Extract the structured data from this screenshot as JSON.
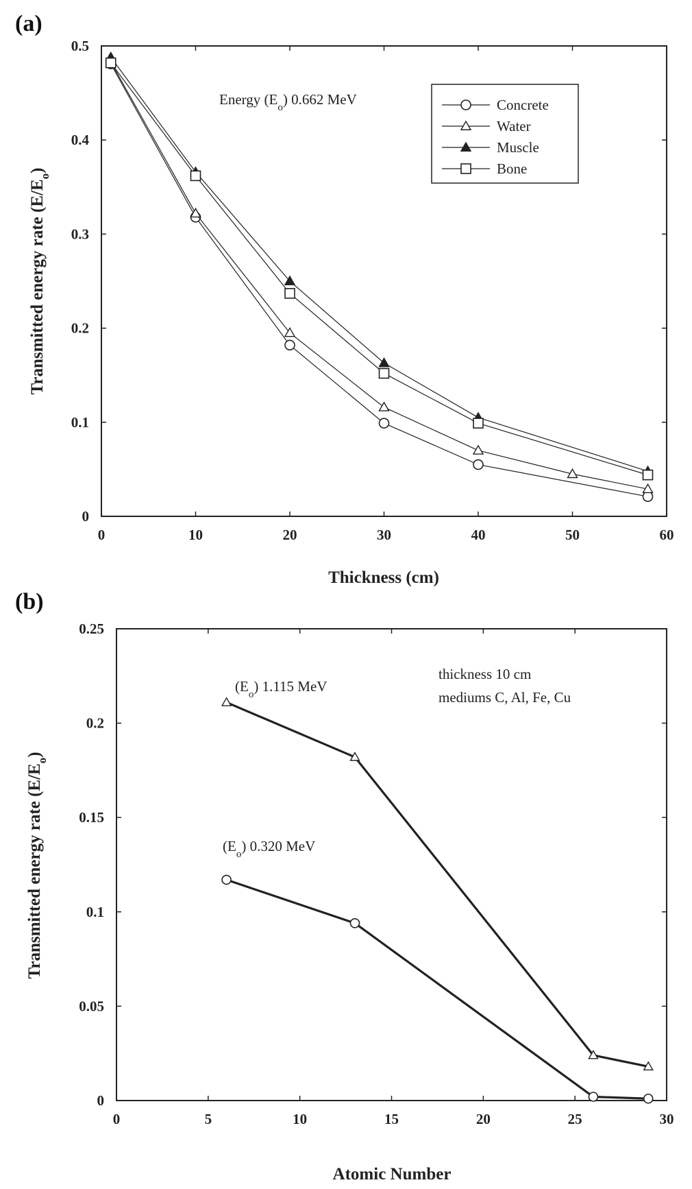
{
  "chart_data": [
    {
      "panel_label": "(a)",
      "type": "line",
      "xlabel": "Thickness (cm)",
      "ylabel_main": "Transmitted energy rate (E/E",
      "ylabel_sub": "o",
      "ylabel_end": ")",
      "xlim": [
        0,
        60
      ],
      "ylim": [
        0,
        0.5
      ],
      "xticks": [
        0,
        10,
        20,
        30,
        40,
        50,
        60
      ],
      "yticks": [
        0,
        0.1,
        0.2,
        0.3,
        0.4,
        0.5
      ],
      "xtick_labels": [
        "0",
        "10",
        "20",
        "30",
        "40",
        "50",
        "60"
      ],
      "ytick_labels": [
        "0",
        "0.1",
        "0.2",
        "0.3",
        "0.4",
        "0.5"
      ],
      "annotation": {
        "pre": "Energy (E",
        "sub": "o",
        "post": ") 0.662 MeV"
      },
      "legend_position": "top-right",
      "series": [
        {
          "name": "Concrete",
          "marker": "open-circle",
          "x": [
            1,
            10,
            20,
            30,
            40,
            58
          ],
          "y": [
            0.481,
            0.318,
            0.182,
            0.099,
            0.055,
            0.021
          ]
        },
        {
          "name": "Water",
          "marker": "open-triangle",
          "x": [
            1,
            10,
            20,
            30,
            40,
            50,
            58
          ],
          "y": [
            0.483,
            0.322,
            0.195,
            0.116,
            0.07,
            0.045,
            0.029
          ]
        },
        {
          "name": "Muscle",
          "marker": "filled-triangle",
          "x": [
            1,
            10,
            20,
            30,
            40,
            58
          ],
          "y": [
            0.488,
            0.366,
            0.25,
            0.163,
            0.105,
            0.048
          ]
        },
        {
          "name": "Bone",
          "marker": "open-square",
          "x": [
            1,
            10,
            20,
            30,
            40,
            58
          ],
          "y": [
            0.482,
            0.362,
            0.237,
            0.152,
            0.099,
            0.044
          ]
        }
      ]
    },
    {
      "panel_label": "(b)",
      "type": "line",
      "xlabel": "Atomic Number",
      "ylabel_main": "Transmitted energy rate (E/E",
      "ylabel_sub": "o",
      "ylabel_end": ")",
      "xlim": [
        0,
        30
      ],
      "ylim": [
        0,
        0.25
      ],
      "xticks": [
        0,
        5,
        10,
        15,
        20,
        25,
        30
      ],
      "yticks": [
        0,
        0.05,
        0.1,
        0.15,
        0.2,
        0.25
      ],
      "xtick_labels": [
        "0",
        "5",
        "10",
        "15",
        "20",
        "25",
        "30"
      ],
      "ytick_labels": [
        "0",
        "0.05",
        "0.1",
        "0.15",
        "0.2",
        "0.25"
      ],
      "annotation_lines": [
        "thickness 10 cm",
        "mediums C, Al, Fe, Cu"
      ],
      "series": [
        {
          "name": "1.115 MeV",
          "marker": "open-triangle",
          "label": {
            "pre": "(E",
            "sub": "o",
            "post": ") 1.115 MeV"
          },
          "x": [
            6,
            13,
            26,
            29
          ],
          "y": [
            0.211,
            0.182,
            0.024,
            0.018
          ]
        },
        {
          "name": "0.320 MeV",
          "marker": "open-circle",
          "label": {
            "pre": "(E",
            "sub": "o",
            "post": ") 0.320 MeV"
          },
          "x": [
            6,
            13,
            26,
            29
          ],
          "y": [
            0.117,
            0.094,
            0.002,
            0.001
          ]
        }
      ]
    }
  ]
}
